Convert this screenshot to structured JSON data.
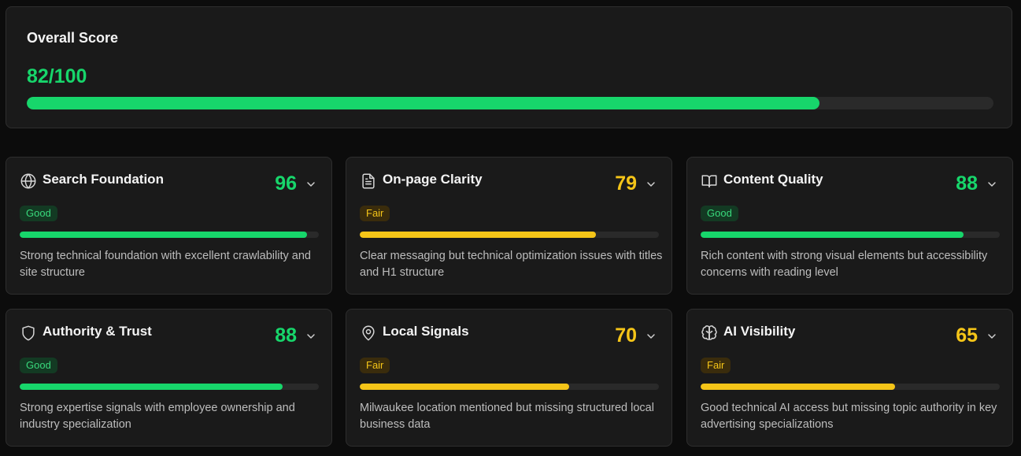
{
  "colors": {
    "good": "#17d66b",
    "fair": "#f5c518",
    "background": "#0c0c0c",
    "card": "#1a1a1a"
  },
  "overall": {
    "title": "Overall Score",
    "score_text": "82/100",
    "progress": 0.82
  },
  "cards": [
    {
      "title": "Search Foundation",
      "icon": "globe-icon",
      "score": "96",
      "status": "Good",
      "level": "good",
      "progress": 0.96,
      "description": "Strong technical foundation with excellent crawlability and site structure"
    },
    {
      "title": "On-page Clarity",
      "icon": "document-icon",
      "score": "79",
      "status": "Fair",
      "level": "fair",
      "progress": 0.79,
      "description": "Clear messaging but technical optimization issues with titles and H1 structure"
    },
    {
      "title": "Content Quality",
      "icon": "book-icon",
      "score": "88",
      "status": "Good",
      "level": "good",
      "progress": 0.88,
      "description": "Rich content with strong visual elements but accessibility concerns with reading level"
    },
    {
      "title": "Authority & Trust",
      "icon": "shield-icon",
      "score": "88",
      "status": "Good",
      "level": "good",
      "progress": 0.88,
      "description": "Strong expertise signals with employee ownership and industry specialization"
    },
    {
      "title": "Local Signals",
      "icon": "map-pin-icon",
      "score": "70",
      "status": "Fair",
      "level": "fair",
      "progress": 0.7,
      "description": "Milwaukee location mentioned but missing structured local business data"
    },
    {
      "title": "AI Visibility",
      "icon": "brain-icon",
      "score": "65",
      "status": "Fair",
      "level": "fair",
      "progress": 0.65,
      "description": "Good technical AI access but missing topic authority in key advertising specializations"
    }
  ]
}
